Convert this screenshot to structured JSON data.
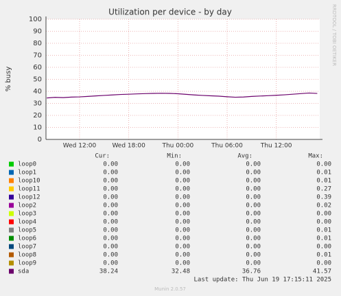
{
  "chart_data": {
    "type": "line",
    "title": "Utilization per device - by day",
    "y_label": "% busy",
    "side_label": "RRDTOOL / TOBI OETIKER",
    "x": [
      8,
      9,
      10,
      11,
      12,
      13,
      14,
      15,
      16,
      17,
      18,
      19,
      20,
      21,
      22,
      23,
      24,
      25,
      26,
      27,
      28,
      29,
      30,
      31,
      32,
      33,
      34,
      35,
      36,
      37,
      38,
      39,
      40,
      41
    ],
    "xlim": [
      7.9,
      41.3
    ],
    "xticks": [
      {
        "value": 12,
        "label": "Wed 12:00"
      },
      {
        "value": 18,
        "label": "Wed 18:00"
      },
      {
        "value": 24,
        "label": "Thu 00:00"
      },
      {
        "value": 30,
        "label": "Thu 06:00"
      },
      {
        "value": 36,
        "label": "Thu 12:00"
      }
    ],
    "ylim": [
      0,
      100
    ],
    "yticks": [
      0,
      10,
      20,
      30,
      40,
      50,
      60,
      70,
      80,
      90,
      100
    ],
    "grid": true,
    "series": [
      {
        "name": "sda",
        "color": "#6b006b",
        "values": [
          34.5,
          35,
          34.8,
          35.2,
          35.4,
          35.8,
          36.2,
          36.6,
          37,
          37.4,
          37.6,
          37.9,
          38.1,
          38.3,
          38.4,
          38.3,
          38,
          37.5,
          37,
          36.6,
          36.3,
          36,
          35.5,
          35.1,
          35.3,
          35.8,
          36.1,
          36.4,
          36.7,
          37.1,
          37.6,
          38.1,
          38.6,
          38.24
        ]
      }
    ],
    "legend": {
      "headers": [
        "Cur:",
        "Min:",
        "Avg:",
        "Max:"
      ],
      "rows": [
        {
          "name": "loop0",
          "color": "#00cc00",
          "cells": [
            "0.00",
            "0.00",
            "0.00",
            "0.00"
          ]
        },
        {
          "name": "loop1",
          "color": "#0066b3",
          "cells": [
            "0.00",
            "0.00",
            "0.00",
            "0.01"
          ]
        },
        {
          "name": "loop10",
          "color": "#ff8000",
          "cells": [
            "0.00",
            "0.00",
            "0.00",
            "0.01"
          ]
        },
        {
          "name": "loop11",
          "color": "#ffcc00",
          "cells": [
            "0.00",
            "0.00",
            "0.00",
            "0.27"
          ]
        },
        {
          "name": "loop12",
          "color": "#330099",
          "cells": [
            "0.00",
            "0.00",
            "0.00",
            "0.39"
          ]
        },
        {
          "name": "loop2",
          "color": "#990099",
          "cells": [
            "0.00",
            "0.00",
            "0.00",
            "0.02"
          ]
        },
        {
          "name": "loop3",
          "color": "#ccff00",
          "cells": [
            "0.00",
            "0.00",
            "0.00",
            "0.00"
          ]
        },
        {
          "name": "loop4",
          "color": "#ff0000",
          "cells": [
            "0.00",
            "0.00",
            "0.00",
            "0.00"
          ]
        },
        {
          "name": "loop5",
          "color": "#808080",
          "cells": [
            "0.00",
            "0.00",
            "0.00",
            "0.01"
          ]
        },
        {
          "name": "loop6",
          "color": "#008f00",
          "cells": [
            "0.00",
            "0.00",
            "0.00",
            "0.01"
          ]
        },
        {
          "name": "loop7",
          "color": "#00487d",
          "cells": [
            "0.00",
            "0.00",
            "0.00",
            "0.00"
          ]
        },
        {
          "name": "loop8",
          "color": "#b35a00",
          "cells": [
            "0.00",
            "0.00",
            "0.00",
            "0.01"
          ]
        },
        {
          "name": "loop9",
          "color": "#b38f00",
          "cells": [
            "0.00",
            "0.00",
            "0.00",
            "0.00"
          ]
        },
        {
          "name": "sda",
          "color": "#6b006b",
          "cells": [
            "38.24",
            "32.48",
            "36.76",
            "41.57"
          ]
        }
      ]
    },
    "last_update": "Last update: Thu Jun 19 17:15:11 2025",
    "footer": "Munin 2.0.57"
  }
}
